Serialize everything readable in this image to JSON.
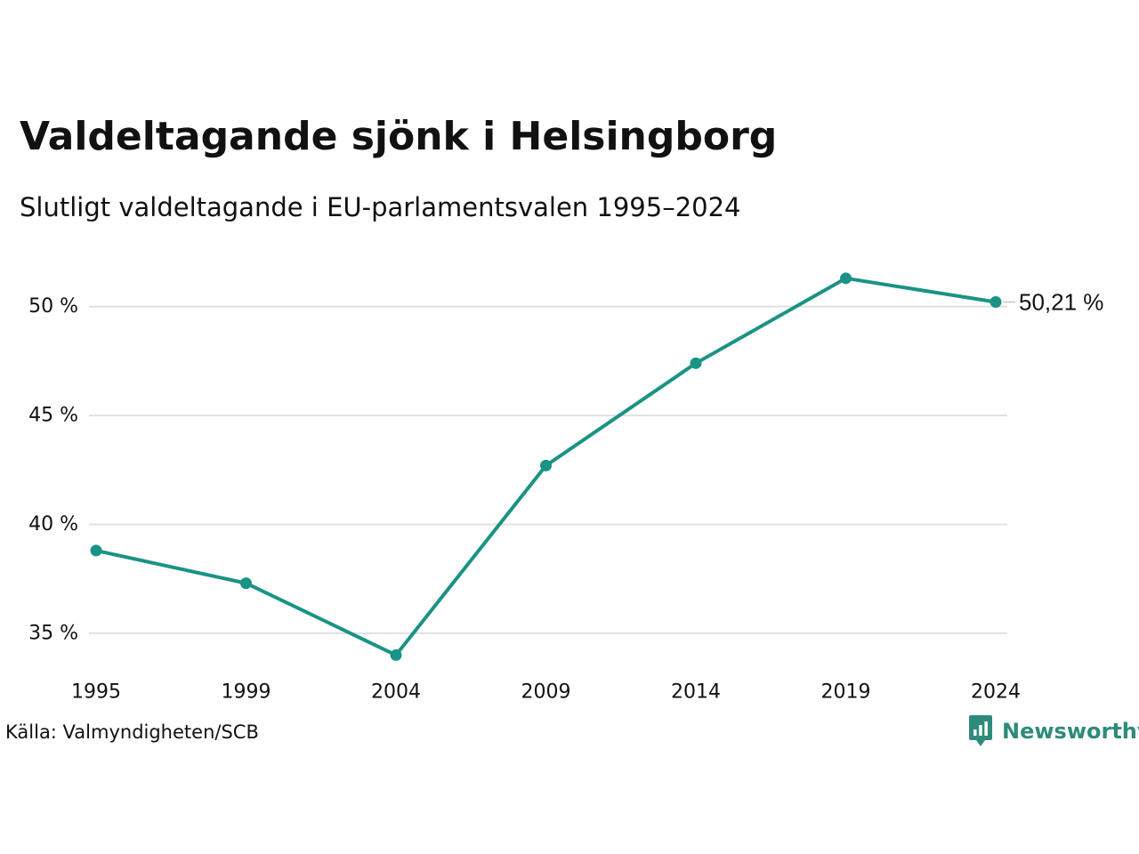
{
  "title": "Valdeltagande sjönk i Helsingborg",
  "subtitle": "Slutligt valdeltagande i EU-parlamentsvalen 1995–2024",
  "source": "Källa: Valmyndigheten/SCB",
  "brand": {
    "name": "Newsworthy",
    "icon": "bar-chart-speech-bubble-icon",
    "color": "#2e8b7a"
  },
  "chart_data": {
    "type": "line",
    "x": [
      "1995",
      "1999",
      "2004",
      "2009",
      "2014",
      "2019",
      "2024"
    ],
    "series": [
      {
        "values": [
          38.8,
          37.3,
          34.0,
          42.7,
          47.4,
          51.3,
          50.21
        ],
        "color": "#1a9384"
      }
    ],
    "y_ticks": [
      35,
      40,
      45,
      50
    ],
    "y_tick_labels": [
      "35 %",
      "40 %",
      "45 %",
      "50 %"
    ],
    "ylim": [
      33.2,
      52.6
    ],
    "end_label": "50,21 %",
    "grid": true,
    "grid_color": "#e0e0e0",
    "legend": "none"
  }
}
